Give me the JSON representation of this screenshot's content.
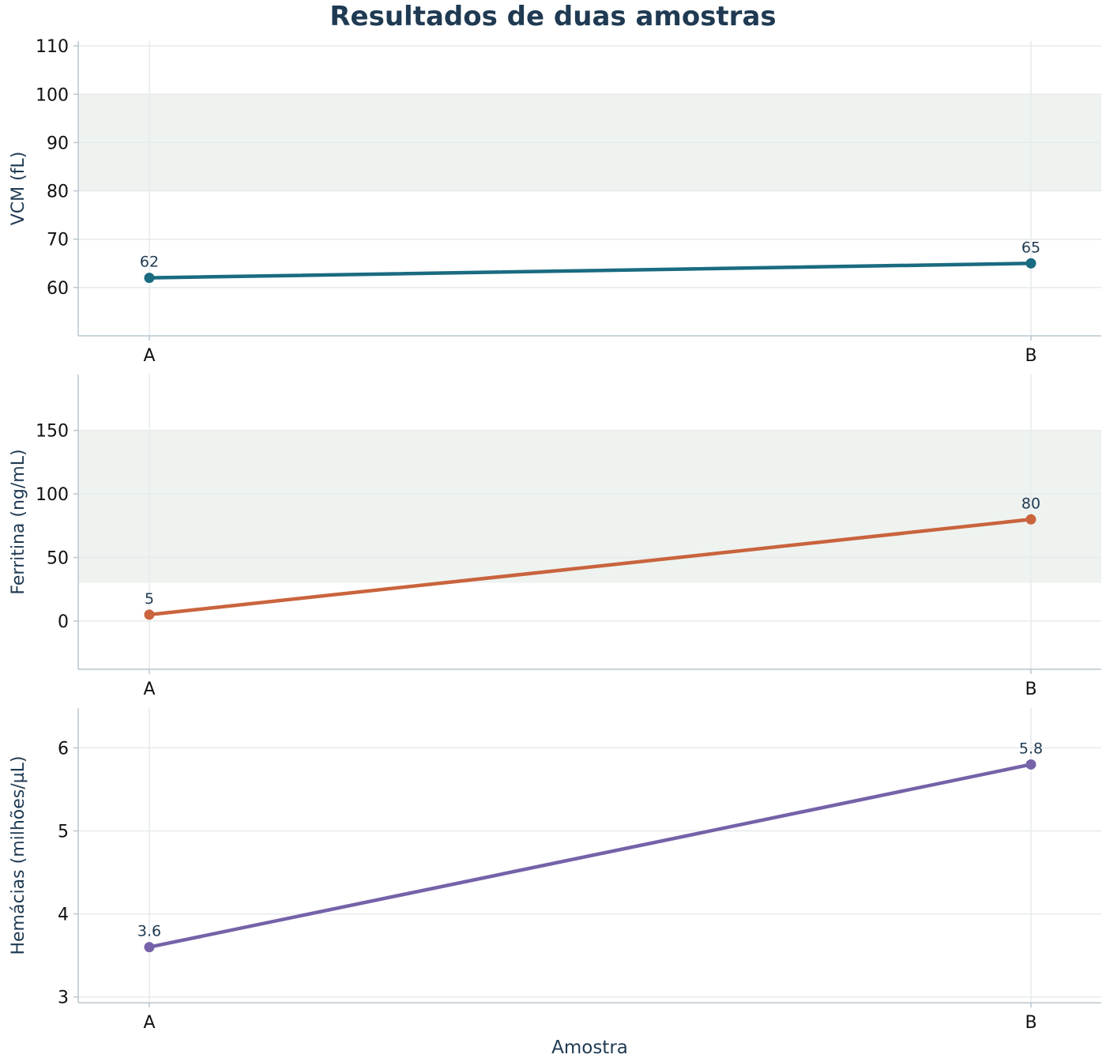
{
  "chart_data": {
    "type": "line",
    "title": "Resultados de duas amostras",
    "xlabel": "Amostra",
    "categories": [
      "A",
      "B"
    ],
    "panels": [
      {
        "ylabel": "VCM (fL)",
        "ylim": [
          50,
          111
        ],
        "yticks": [
          60,
          70,
          80,
          90,
          100,
          110
        ],
        "reference_range": [
          80,
          100
        ],
        "values": [
          62,
          65
        ],
        "data_labels": [
          "62",
          "65"
        ],
        "color": "#1a6b80"
      },
      {
        "ylabel": "Ferritina (ng/mL)",
        "ylim": [
          -38,
          194
        ],
        "yticks": [
          0,
          50,
          100,
          150
        ],
        "reference_range": [
          30,
          150
        ],
        "values": [
          5,
          80
        ],
        "data_labels": [
          "5",
          "80"
        ],
        "color": "#c9643d"
      },
      {
        "ylabel": "Hemácias (milhões/µL)",
        "ylim": [
          2.93,
          6.48
        ],
        "yticks": [
          3,
          4,
          5,
          6
        ],
        "reference_range": null,
        "values": [
          3.6,
          5.8
        ],
        "data_labels": [
          "3.6",
          "5.8"
        ],
        "color": "#7562a8"
      }
    ],
    "grid": true,
    "band_color": "#eef3f0",
    "label_color": "#1f3a52"
  }
}
